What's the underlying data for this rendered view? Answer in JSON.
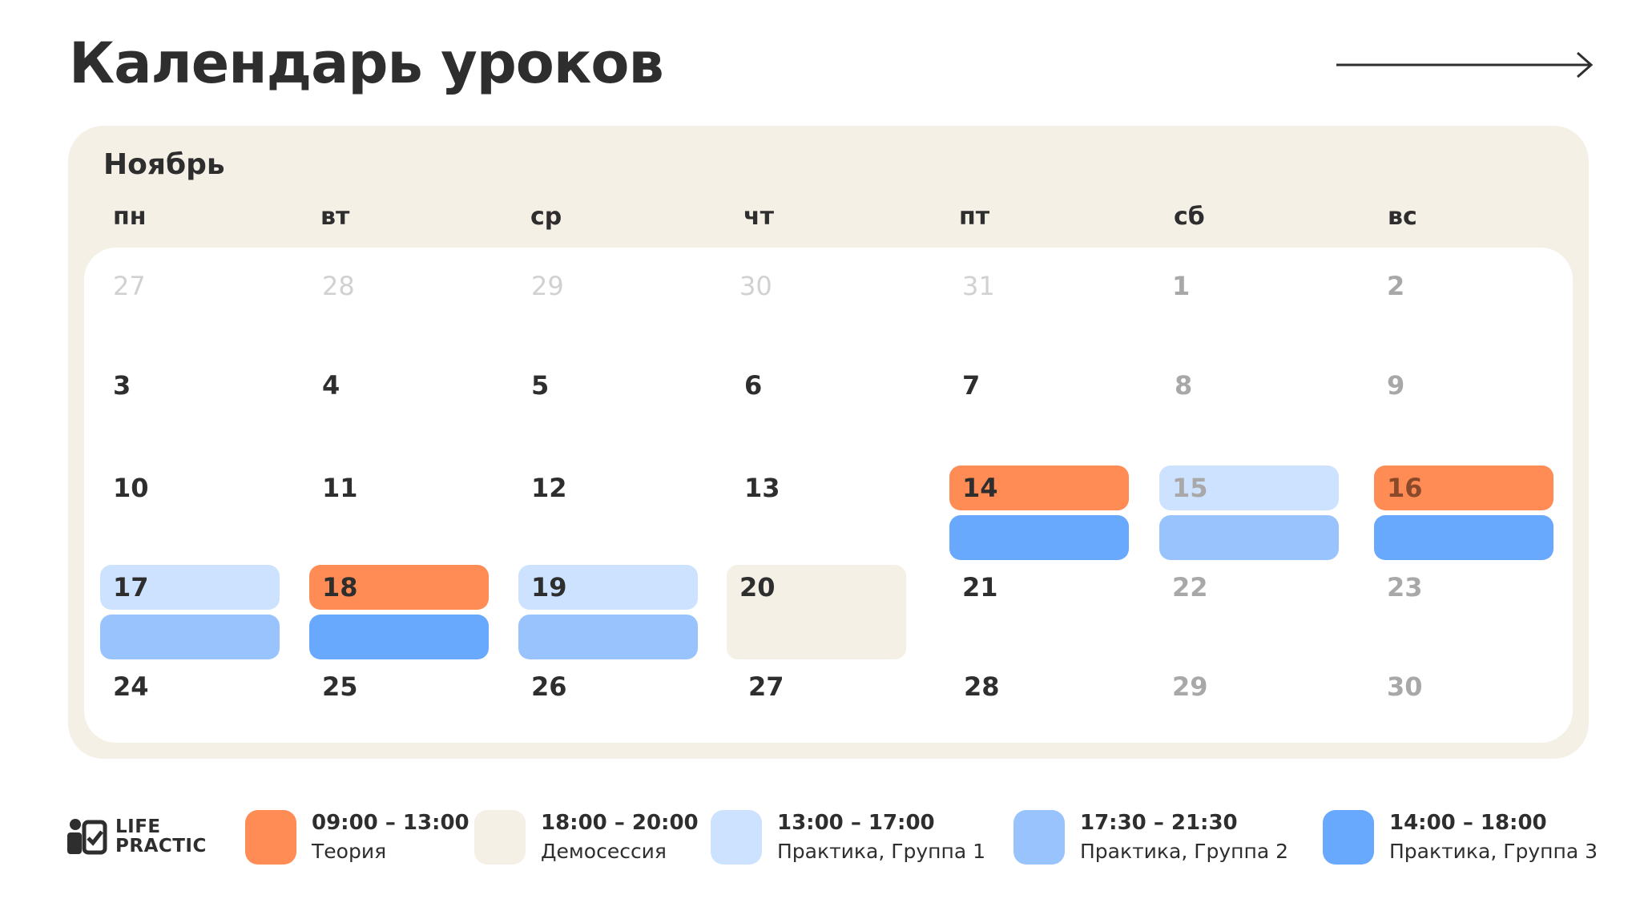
{
  "title": "Календарь уроков",
  "month": "Ноябрь",
  "weekdays": [
    "пн",
    "вт",
    "ср",
    "чт",
    "пт",
    "сб",
    "вс"
  ],
  "colors": {
    "theory": "#ff8b55",
    "demo": "#f4f0e6",
    "group1": "#cce2fe",
    "group2": "#98c3fd",
    "group3": "#68a8fd"
  },
  "weeks": [
    [
      "27",
      "28",
      "29",
      "30",
      "31",
      "1",
      "2"
    ],
    [
      "3",
      "4",
      "5",
      "6",
      "7",
      "8",
      "9"
    ],
    [
      "10",
      "11",
      "12",
      "13",
      "14",
      "15",
      "16"
    ],
    [
      "17",
      "18",
      "19",
      "20",
      "21",
      "22",
      "23"
    ],
    [
      "24",
      "25",
      "26",
      "27",
      "28",
      "29",
      "30"
    ]
  ],
  "legend": [
    {
      "time": "09:00 – 13:00",
      "label": "Теория",
      "color": "#ff8b55"
    },
    {
      "time": "18:00 – 20:00",
      "label": "Демосессия",
      "color": "#f4f0e6"
    },
    {
      "time": "13:00 – 17:00",
      "label": "Практика, Группа 1",
      "color": "#cce2fe"
    },
    {
      "time": "17:30 – 21:30",
      "label": "Практика, Группа 2",
      "color": "#98c3fd"
    },
    {
      "time": "14:00 – 18:00",
      "label": "Практика, Группа 3",
      "color": "#68a8fd"
    }
  ],
  "logo": {
    "line1": "LIFE",
    "line2": "PRACTIC"
  },
  "icons": {
    "next": "arrow-right-icon",
    "logo": "life-practic-logo-icon"
  }
}
